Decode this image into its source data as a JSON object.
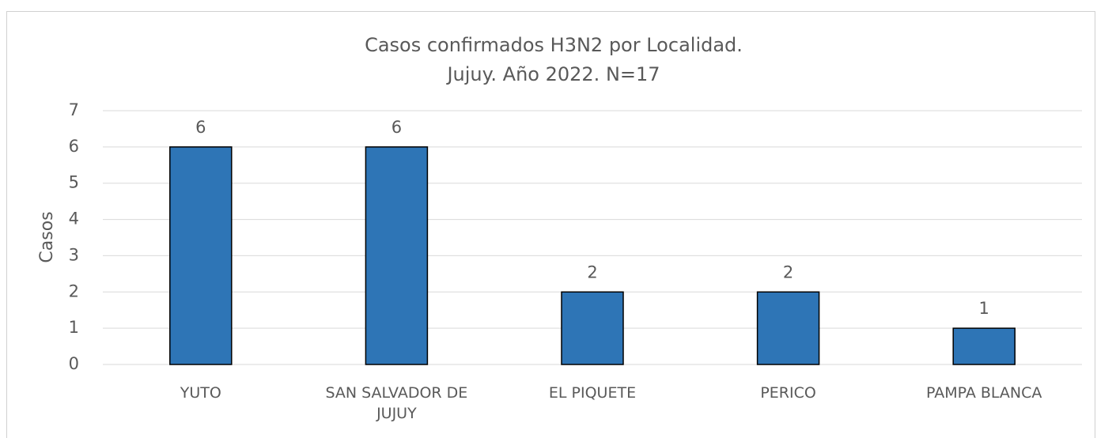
{
  "chart_data": {
    "type": "bar",
    "title": [
      "Casos confirmados H3N2 por Localidad.",
      "Jujuy. Año 2022. N=17"
    ],
    "y_label": "Casos",
    "categories": [
      "YUTO",
      "SAN SALVADOR DE JUJUY",
      "EL PIQUETE",
      "PERICO",
      "PAMPA BLANCA"
    ],
    "values": [
      6,
      6,
      2,
      2,
      1
    ],
    "color": "#2e75b6",
    "ylim": [
      0,
      7
    ],
    "yticks": [
      0,
      1,
      2,
      3,
      4,
      5,
      6,
      7
    ],
    "grid": true
  }
}
